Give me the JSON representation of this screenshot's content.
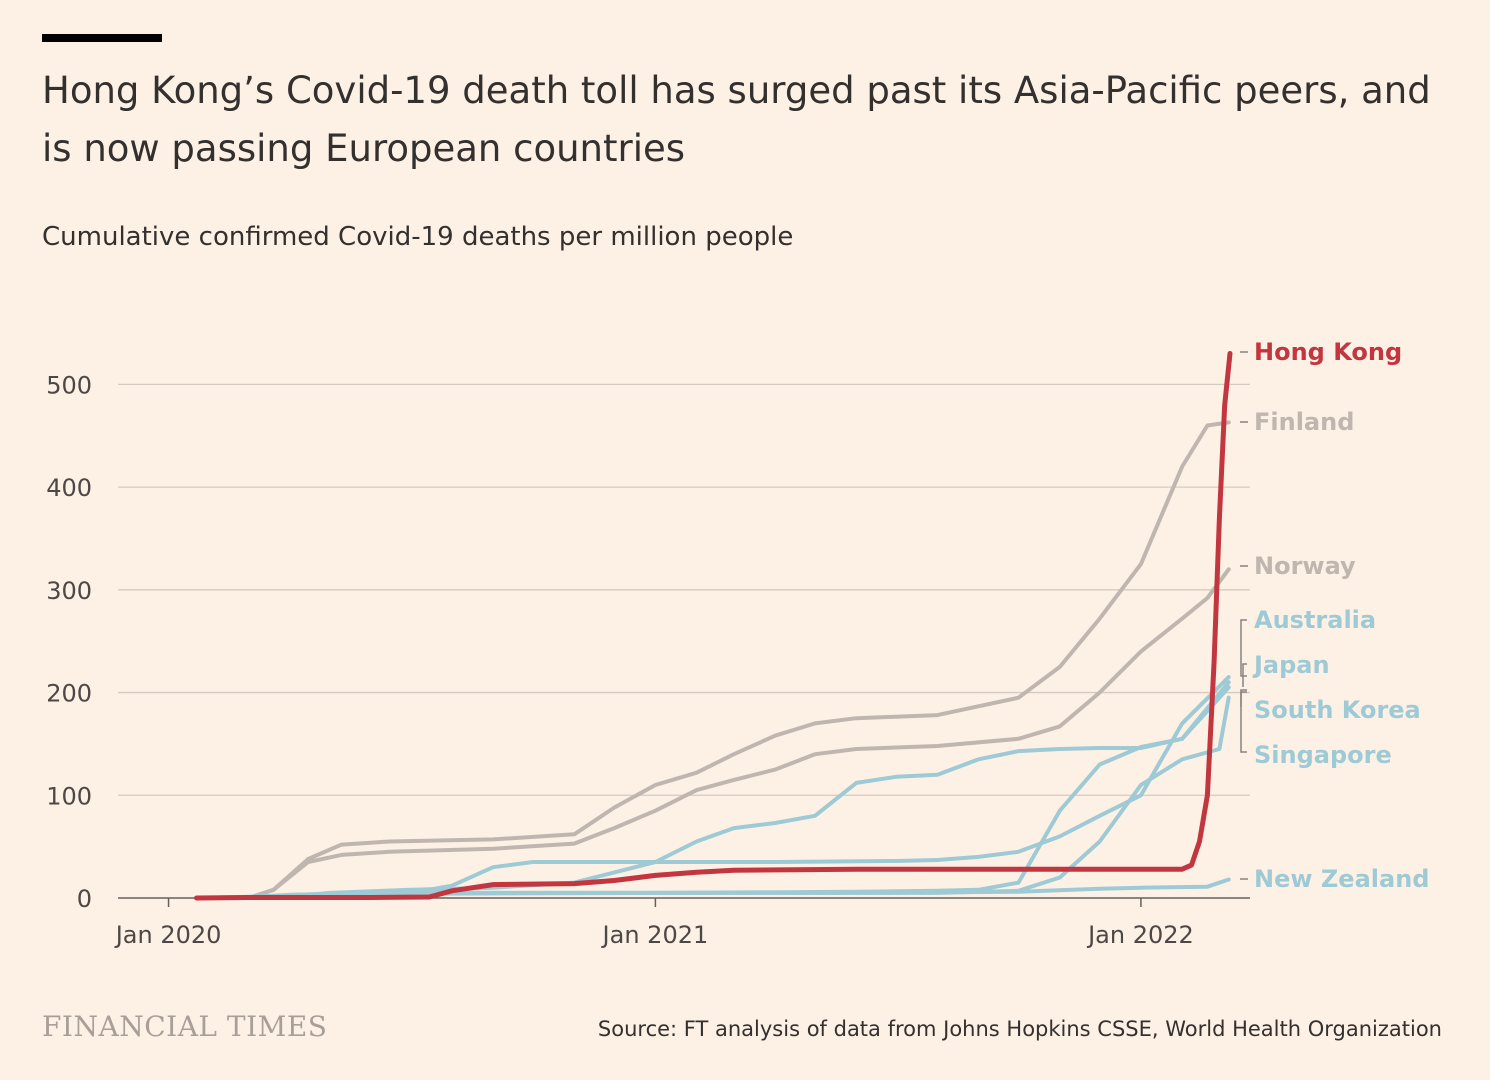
{
  "header": {
    "title": "Hong Kong’s Covid-19 death toll has surged past its Asia-Pacific peers, and is now passing European countries",
    "subtitle": "Cumulative confirmed Covid-19 deaths per million people"
  },
  "footer": {
    "brand": "FINANCIAL TIMES",
    "source": "Source: FT analysis of data from Johns Hopkins CSSE, World Health Organization"
  },
  "chart_data": {
    "type": "line",
    "title": "Hong Kong’s Covid-19 death toll has surged past its Asia-Pacific peers, and is now passing European countries",
    "subtitle": "Cumulative confirmed Covid-19 deaths per million people",
    "xlabel": "",
    "ylabel": "",
    "x_unit": "date",
    "xlim": [
      "2019-11-24",
      "2022-03-24"
    ],
    "ylim": [
      0,
      550
    ],
    "yticks": [
      0,
      100,
      200,
      300,
      400,
      500
    ],
    "xticks": [
      {
        "date": "2020-01-01",
        "label": "Jan 2020"
      },
      {
        "date": "2021-01-01",
        "label": "Jan 2021"
      },
      {
        "date": "2022-01-01",
        "label": "Jan 2022"
      }
    ],
    "grid": true,
    "legend": "direct labels at right end of lines",
    "colors": {
      "highlight": "#c2363f",
      "europe": "#c0b6b0",
      "asia_pacific": "#9ecad6",
      "grid": "#d4cac2",
      "leader": "#8a8380"
    },
    "series": [
      {
        "name": "Finland",
        "group": "europe",
        "points": [
          [
            "2020-01-22",
            0
          ],
          [
            "2020-03-01",
            0
          ],
          [
            "2020-03-20",
            8
          ],
          [
            "2020-04-15",
            38
          ],
          [
            "2020-05-10",
            52
          ],
          [
            "2020-06-15",
            55
          ],
          [
            "2020-09-01",
            57
          ],
          [
            "2020-11-01",
            62
          ],
          [
            "2020-12-01",
            88
          ],
          [
            "2021-01-01",
            110
          ],
          [
            "2021-02-01",
            122
          ],
          [
            "2021-03-01",
            140
          ],
          [
            "2021-04-01",
            158
          ],
          [
            "2021-05-01",
            170
          ],
          [
            "2021-06-01",
            175
          ],
          [
            "2021-08-01",
            178
          ],
          [
            "2021-10-01",
            195
          ],
          [
            "2021-11-01",
            225
          ],
          [
            "2021-12-01",
            272
          ],
          [
            "2022-01-01",
            325
          ],
          [
            "2022-02-01",
            420
          ],
          [
            "2022-02-20",
            460
          ],
          [
            "2022-03-08",
            463
          ]
        ]
      },
      {
        "name": "Norway",
        "group": "europe",
        "points": [
          [
            "2020-01-22",
            0
          ],
          [
            "2020-03-01",
            0
          ],
          [
            "2020-03-20",
            8
          ],
          [
            "2020-04-15",
            35
          ],
          [
            "2020-05-10",
            42
          ],
          [
            "2020-06-15",
            45
          ],
          [
            "2020-09-01",
            48
          ],
          [
            "2020-11-01",
            53
          ],
          [
            "2020-12-01",
            68
          ],
          [
            "2021-01-01",
            85
          ],
          [
            "2021-02-01",
            105
          ],
          [
            "2021-03-01",
            115
          ],
          [
            "2021-04-01",
            125
          ],
          [
            "2021-05-01",
            140
          ],
          [
            "2021-06-01",
            145
          ],
          [
            "2021-08-01",
            148
          ],
          [
            "2021-10-01",
            155
          ],
          [
            "2021-11-01",
            167
          ],
          [
            "2021-12-01",
            200
          ],
          [
            "2022-01-01",
            240
          ],
          [
            "2022-02-01",
            272
          ],
          [
            "2022-02-20",
            292
          ],
          [
            "2022-03-08",
            320
          ]
        ]
      },
      {
        "name": "Australia",
        "group": "asia_pacific",
        "points": [
          [
            "2020-01-22",
            0
          ],
          [
            "2020-03-01",
            0
          ],
          [
            "2020-04-01",
            3
          ],
          [
            "2020-05-01",
            4
          ],
          [
            "2020-07-01",
            5
          ],
          [
            "2020-08-01",
            12
          ],
          [
            "2020-09-01",
            30
          ],
          [
            "2020-10-01",
            35
          ],
          [
            "2021-01-01",
            35
          ],
          [
            "2021-04-01",
            35
          ],
          [
            "2021-07-01",
            36
          ],
          [
            "2021-08-01",
            37
          ],
          [
            "2021-09-01",
            40
          ],
          [
            "2021-10-01",
            45
          ],
          [
            "2021-11-01",
            60
          ],
          [
            "2021-12-01",
            80
          ],
          [
            "2022-01-01",
            100
          ],
          [
            "2022-02-01",
            170
          ],
          [
            "2022-03-08",
            215
          ]
        ]
      },
      {
        "name": "Japan",
        "group": "asia_pacific",
        "points": [
          [
            "2020-01-22",
            0
          ],
          [
            "2020-04-01",
            1
          ],
          [
            "2020-05-01",
            5
          ],
          [
            "2020-07-01",
            8
          ],
          [
            "2020-09-01",
            10
          ],
          [
            "2020-11-01",
            15
          ],
          [
            "2021-01-01",
            35
          ],
          [
            "2021-02-01",
            55
          ],
          [
            "2021-03-01",
            68
          ],
          [
            "2021-04-01",
            73
          ],
          [
            "2021-05-01",
            80
          ],
          [
            "2021-06-01",
            112
          ],
          [
            "2021-07-01",
            118
          ],
          [
            "2021-08-01",
            120
          ],
          [
            "2021-09-01",
            135
          ],
          [
            "2021-10-01",
            143
          ],
          [
            "2021-11-01",
            145
          ],
          [
            "2021-12-01",
            146
          ],
          [
            "2022-01-01",
            146
          ],
          [
            "2022-02-01",
            155
          ],
          [
            "2022-03-08",
            205
          ]
        ]
      },
      {
        "name": "South Korea",
        "group": "asia_pacific",
        "points": [
          [
            "2020-01-22",
            0
          ],
          [
            "2020-03-01",
            1
          ],
          [
            "2020-04-01",
            3
          ],
          [
            "2020-06-01",
            5
          ],
          [
            "2021-01-01",
            5
          ],
          [
            "2021-06-01",
            5
          ],
          [
            "2021-08-01",
            5
          ],
          [
            "2021-10-01",
            7
          ],
          [
            "2021-11-01",
            20
          ],
          [
            "2021-12-01",
            55
          ],
          [
            "2022-01-01",
            110
          ],
          [
            "2022-02-01",
            135
          ],
          [
            "2022-03-01",
            145
          ],
          [
            "2022-03-08",
            195
          ]
        ]
      },
      {
        "name": "Singapore",
        "group": "asia_pacific",
        "points": [
          [
            "2020-01-22",
            0
          ],
          [
            "2020-04-01",
            1
          ],
          [
            "2020-06-01",
            5
          ],
          [
            "2021-01-01",
            5
          ],
          [
            "2021-06-01",
            6
          ],
          [
            "2021-08-01",
            7
          ],
          [
            "2021-09-01",
            8
          ],
          [
            "2021-10-01",
            15
          ],
          [
            "2021-11-01",
            85
          ],
          [
            "2021-12-01",
            130
          ],
          [
            "2022-01-01",
            147
          ],
          [
            "2022-02-01",
            155
          ],
          [
            "2022-02-20",
            185
          ],
          [
            "2022-03-08",
            210
          ]
        ]
      },
      {
        "name": "New Zealand",
        "group": "asia_pacific",
        "points": [
          [
            "2020-01-22",
            0
          ],
          [
            "2020-04-01",
            2
          ],
          [
            "2020-06-01",
            4
          ],
          [
            "2021-01-01",
            5
          ],
          [
            "2021-06-01",
            5
          ],
          [
            "2021-10-01",
            6
          ],
          [
            "2021-12-01",
            9
          ],
          [
            "2022-01-01",
            10
          ],
          [
            "2022-02-20",
            11
          ],
          [
            "2022-03-08",
            18
          ]
        ]
      },
      {
        "name": "Hong Kong",
        "group": "highlight",
        "points": [
          [
            "2020-01-22",
            0
          ],
          [
            "2020-03-01",
            0.5
          ],
          [
            "2020-06-01",
            0.5
          ],
          [
            "2020-07-15",
            1
          ],
          [
            "2020-08-01",
            7
          ],
          [
            "2020-09-01",
            13
          ],
          [
            "2020-11-01",
            14
          ],
          [
            "2020-12-01",
            17
          ],
          [
            "2021-01-01",
            22
          ],
          [
            "2021-02-01",
            25
          ],
          [
            "2021-03-01",
            27
          ],
          [
            "2021-06-01",
            28
          ],
          [
            "2022-01-01",
            28
          ],
          [
            "2022-02-01",
            28
          ],
          [
            "2022-02-08",
            32
          ],
          [
            "2022-02-14",
            55
          ],
          [
            "2022-02-20",
            100
          ],
          [
            "2022-02-25",
            230
          ],
          [
            "2022-03-01",
            370
          ],
          [
            "2022-03-05",
            480
          ],
          [
            "2022-03-09",
            530
          ]
        ]
      }
    ],
    "labels": [
      {
        "series": "Hong Kong",
        "text": "Hong Kong",
        "value": 530
      },
      {
        "series": "Finland",
        "text": "Finland",
        "value": 463
      },
      {
        "series": "Norway",
        "text": "Norway",
        "value": 320
      },
      {
        "series": "Australia",
        "text": "Australia"
      },
      {
        "series": "Japan",
        "text": "Japan"
      },
      {
        "series": "South Korea",
        "text": "South Korea"
      },
      {
        "series": "Singapore",
        "text": "Singapore"
      },
      {
        "series": "New Zealand",
        "text": "New Zealand",
        "value": 18
      }
    ]
  }
}
